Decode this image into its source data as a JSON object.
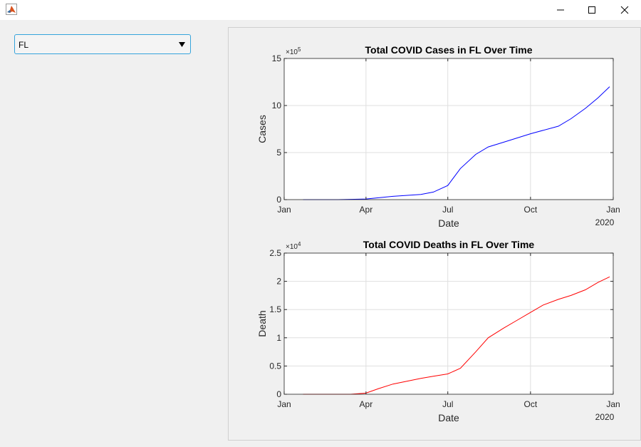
{
  "window": {
    "icon": "matlab-icon",
    "controls": [
      "minimize-icon",
      "maximize-icon",
      "close-icon"
    ]
  },
  "state_selector": {
    "value": "FL",
    "icon": "caret-down-icon"
  },
  "chart_data": [
    {
      "type": "line",
      "title": "Total COVID Cases in FL Over Time",
      "xlabel": "Date",
      "ylabel": "Cases",
      "exponent_label": "×10^5",
      "exponent_base": "×10",
      "exponent_power": "5",
      "x_tick_labels": [
        "Jan",
        "Apr",
        "Jul",
        "Oct",
        "Jan"
      ],
      "x_tick_values": [
        "2020-01-01",
        "2020-04-01",
        "2020-07-01",
        "2020-10-01",
        "2021-01-01"
      ],
      "x_secondary_label": "2020",
      "xlim": [
        "2020-01-01",
        "2021-01-01"
      ],
      "y_tick_labels": [
        "0",
        "5",
        "10",
        "15"
      ],
      "y_tick_values": [
        0,
        500000,
        1000000,
        1500000
      ],
      "ylim": [
        0,
        1500000
      ],
      "grid": true,
      "color": "#0000ff",
      "series": [
        {
          "x": [
            "2020-01-22",
            "2020-03-01",
            "2020-04-01",
            "2020-05-01",
            "2020-06-01",
            "2020-06-15",
            "2020-07-01",
            "2020-07-15",
            "2020-08-01",
            "2020-08-15",
            "2020-09-01",
            "2020-10-01",
            "2020-11-01",
            "2020-11-15",
            "2020-12-01",
            "2020-12-15",
            "2020-12-28"
          ],
          "y": [
            0,
            0,
            7000,
            35000,
            55000,
            80000,
            150000,
            330000,
            480000,
            560000,
            610000,
            700000,
            780000,
            860000,
            970000,
            1080000,
            1200000
          ]
        }
      ]
    },
    {
      "type": "line",
      "title": "Total COVID Deaths in FL Over Time",
      "xlabel": "Date",
      "ylabel": "Death",
      "exponent_label": "×10^4",
      "exponent_base": "×10",
      "exponent_power": "4",
      "x_tick_labels": [
        "Jan",
        "Apr",
        "Jul",
        "Oct",
        "Jan"
      ],
      "x_tick_values": [
        "2020-01-01",
        "2020-04-01",
        "2020-07-01",
        "2020-10-01",
        "2021-01-01"
      ],
      "x_secondary_label": "2020",
      "xlim": [
        "2020-01-01",
        "2021-01-01"
      ],
      "y_tick_labels": [
        "0",
        "0.5",
        "1",
        "1.5",
        "2",
        "2.5"
      ],
      "y_tick_values": [
        0,
        5000,
        10000,
        15000,
        20000,
        25000
      ],
      "ylim": [
        0,
        25000
      ],
      "grid": true,
      "color": "#ff0000",
      "series": [
        {
          "x": [
            "2020-01-22",
            "2020-03-15",
            "2020-04-01",
            "2020-04-15",
            "2020-05-01",
            "2020-06-01",
            "2020-06-15",
            "2020-07-01",
            "2020-07-15",
            "2020-08-01",
            "2020-08-15",
            "2020-09-01",
            "2020-09-15",
            "2020-10-01",
            "2020-10-15",
            "2020-11-01",
            "2020-11-15",
            "2020-12-01",
            "2020-12-15",
            "2020-12-28"
          ],
          "y": [
            0,
            0,
            200,
            1000,
            1800,
            2800,
            3200,
            3600,
            4600,
            7500,
            10000,
            11700,
            13000,
            14500,
            15800,
            16800,
            17500,
            18500,
            19800,
            20800
          ]
        }
      ]
    }
  ]
}
